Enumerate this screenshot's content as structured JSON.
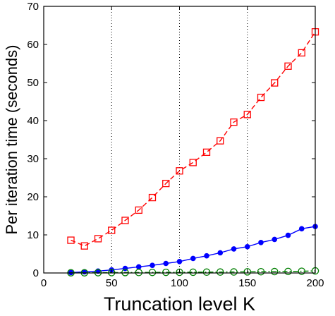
{
  "chart_data": {
    "type": "line",
    "xlabel": "Truncation level K",
    "ylabel": "Per iteration time (seconds)",
    "xlim": [
      0,
      200
    ],
    "ylim": [
      0,
      70
    ],
    "xticks": [
      0,
      50,
      100,
      150,
      200
    ],
    "yticks": [
      0,
      10,
      20,
      30,
      40,
      50,
      60,
      70
    ],
    "vertical_reference_lines": [
      50,
      100,
      150
    ],
    "grid": false,
    "legend": "none",
    "series": [
      {
        "color": "#ff0000",
        "line_style": "dashed",
        "marker": "square",
        "x": [
          20,
          30,
          40,
          50,
          60,
          70,
          80,
          90,
          100,
          110,
          120,
          130,
          140,
          150,
          160,
          170,
          180,
          190,
          200
        ],
        "y": [
          8.6,
          7.1,
          9.0,
          11.2,
          13.8,
          16.5,
          19.8,
          23.5,
          26.8,
          29.0,
          31.7,
          34.7,
          39.6,
          41.6,
          46.1,
          49.9,
          54.3,
          57.8,
          63.3
        ]
      },
      {
        "color": "#0000ff",
        "line_style": "solid",
        "marker": "filled-circle",
        "x": [
          20,
          30,
          40,
          50,
          60,
          70,
          80,
          90,
          100,
          110,
          120,
          130,
          140,
          150,
          160,
          170,
          180,
          190,
          200
        ],
        "y": [
          0.1,
          0.3,
          0.5,
          0.8,
          1.2,
          1.6,
          2.0,
          2.5,
          3.0,
          3.8,
          4.5,
          5.3,
          6.3,
          6.9,
          8.0,
          8.8,
          9.9,
          11.6,
          12.2
        ]
      },
      {
        "color": "#007f00",
        "line_style": "dash-dot",
        "marker": "circle",
        "x": [
          20,
          30,
          40,
          50,
          60,
          70,
          80,
          90,
          100,
          110,
          120,
          130,
          140,
          150,
          160,
          170,
          180,
          190,
          200
        ],
        "y": [
          0.05,
          0.05,
          0.08,
          0.1,
          0.12,
          0.13,
          0.15,
          0.17,
          0.18,
          0.2,
          0.22,
          0.25,
          0.27,
          0.3,
          0.33,
          0.36,
          0.4,
          0.45,
          0.55
        ]
      }
    ]
  }
}
